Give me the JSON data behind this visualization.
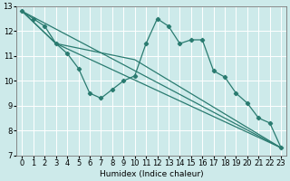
{
  "xlabel": "Humidex (Indice chaleur)",
  "bg_color": "#cdeaea",
  "grid_color": "#ffffff",
  "line_color": "#2a7b70",
  "xlim": [
    -0.5,
    23.5
  ],
  "ylim": [
    7,
    13
  ],
  "xtick_labels": [
    "0",
    "1",
    "2",
    "3",
    "4",
    "5",
    "6",
    "7",
    "8",
    "9",
    "10",
    "11",
    "12",
    "13",
    "14",
    "15",
    "16",
    "17",
    "18",
    "19",
    "20",
    "21",
    "22",
    "23"
  ],
  "yticks": [
    7,
    8,
    9,
    10,
    11,
    12,
    13
  ],
  "main_x": [
    0,
    1,
    2,
    3,
    4,
    5,
    6,
    7,
    8,
    9,
    10,
    11,
    12,
    13,
    14,
    15,
    16,
    17,
    18,
    19,
    20,
    21,
    22,
    23
  ],
  "main_y": [
    12.8,
    12.5,
    12.2,
    11.5,
    11.1,
    10.5,
    9.5,
    9.3,
    9.65,
    10.0,
    10.2,
    11.5,
    12.5,
    12.2,
    11.5,
    11.65,
    11.65,
    10.4,
    10.15,
    9.5,
    9.1,
    8.5,
    8.3,
    7.3
  ],
  "straight_lines": [
    {
      "x": [
        0,
        23
      ],
      "y": [
        12.8,
        7.3
      ]
    },
    {
      "x": [
        0,
        3,
        23
      ],
      "y": [
        12.8,
        11.5,
        7.3
      ]
    },
    {
      "x": [
        0,
        3,
        10,
        23
      ],
      "y": [
        12.8,
        11.5,
        10.85,
        7.3
      ]
    }
  ]
}
